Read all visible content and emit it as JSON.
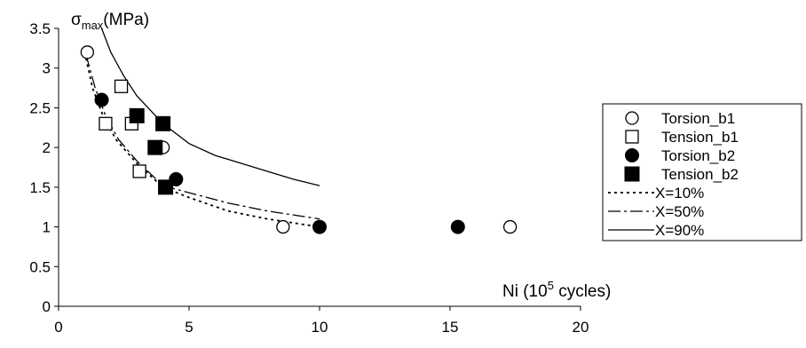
{
  "chart_data": {
    "type": "scatter",
    "title": "",
    "ylabel": "σmax(MPa)",
    "ylabel_parts": {
      "symbol": "σ",
      "sub": "max",
      "unit": "(MPa)"
    },
    "xlabel": "Ni (10^5 cycles)",
    "xlabel_parts": {
      "pre": "Ni (10",
      "sup": "5",
      "post": " cycles)"
    },
    "xlim": [
      0,
      20
    ],
    "ylim": [
      0,
      3.5
    ],
    "xticks": [
      "0",
      "5",
      "10",
      "15",
      "20"
    ],
    "yticks": [
      "0",
      "0.5",
      "1",
      "1.5",
      "2",
      "2.5",
      "3",
      "3.5"
    ],
    "grid": false,
    "legend_position": "right",
    "series": [
      {
        "name": "Torsion_b1",
        "marker": "open-circle",
        "points": [
          [
            1.1,
            3.2
          ],
          [
            4.0,
            2.0
          ],
          [
            8.6,
            1.0
          ],
          [
            17.3,
            1.0
          ]
        ]
      },
      {
        "name": "Tension_b1",
        "marker": "open-square",
        "points": [
          [
            2.4,
            2.77
          ],
          [
            1.8,
            2.3
          ],
          [
            2.8,
            2.3
          ],
          [
            3.1,
            1.7
          ]
        ]
      },
      {
        "name": "Torsion_b2",
        "marker": "filled-circle",
        "points": [
          [
            1.65,
            2.6
          ],
          [
            4.5,
            1.6
          ],
          [
            10.0,
            1.0
          ],
          [
            15.3,
            1.0
          ]
        ]
      },
      {
        "name": "Tension_b2",
        "marker": "filled-square",
        "points": [
          [
            3.0,
            2.4
          ],
          [
            4.0,
            2.3
          ],
          [
            3.7,
            2.0
          ],
          [
            4.1,
            1.5
          ]
        ]
      },
      {
        "name": "X=10%",
        "line": "dotted",
        "points": [
          [
            1.0,
            3.2
          ],
          [
            1.3,
            2.75
          ],
          [
            1.7,
            2.4
          ],
          [
            2.2,
            2.1
          ],
          [
            3.0,
            1.8
          ],
          [
            4.0,
            1.5
          ],
          [
            5.0,
            1.37
          ],
          [
            6.5,
            1.2
          ],
          [
            8.0,
            1.1
          ],
          [
            10.0,
            1.0
          ]
        ]
      },
      {
        "name": "X=50%",
        "line": "dashdot",
        "points": [
          [
            1.05,
            3.17
          ],
          [
            1.4,
            2.75
          ],
          [
            1.8,
            2.4
          ],
          [
            2.3,
            2.1
          ],
          [
            3.0,
            1.83
          ],
          [
            4.0,
            1.52
          ],
          [
            5.0,
            1.43
          ],
          [
            6.5,
            1.3
          ],
          [
            8.0,
            1.2
          ],
          [
            10.0,
            1.1
          ]
        ]
      },
      {
        "name": "X=90%",
        "line": "solid",
        "points": [
          [
            1.65,
            3.5
          ],
          [
            2.0,
            3.2
          ],
          [
            2.5,
            2.9
          ],
          [
            3.0,
            2.65
          ],
          [
            4.0,
            2.3
          ],
          [
            5.0,
            2.05
          ],
          [
            6.0,
            1.9
          ],
          [
            7.0,
            1.8
          ],
          [
            8.0,
            1.7
          ],
          [
            9.0,
            1.6
          ],
          [
            10.0,
            1.52
          ]
        ]
      }
    ]
  }
}
